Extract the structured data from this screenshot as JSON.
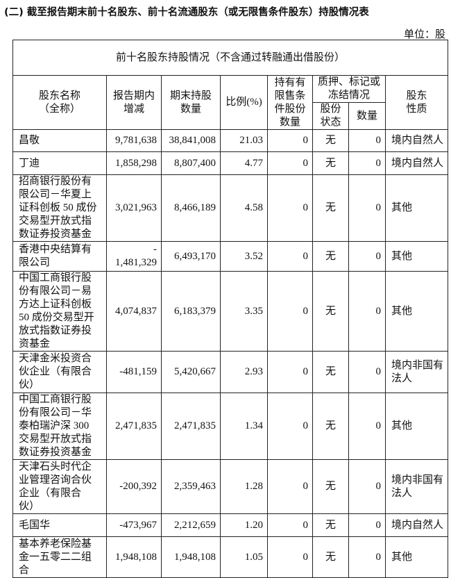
{
  "title": "(二) 截至报告期末前十名股东、前十名流通股东（或无限售条件股东）持股情况表",
  "unit": "单位：股",
  "table": {
    "caption": "前十名股东持股情况（不含通过转融通出借股份）",
    "headers": {
      "name": "股东名称\n（全称）",
      "change": "报告期内\n增减",
      "held": "期末持股\n数量",
      "ratio": "比例(%)",
      "restricted": "持有有\n限售条\n件股份\n数量",
      "pledge": "质押、标记或\n冻结情况",
      "pledge_status": "股份\n状态",
      "pledge_qty": "数量",
      "nature": "股东\n性质"
    },
    "rows": [
      {
        "name": "昌敬",
        "change": "9,781,638",
        "held": "38,841,008",
        "ratio": "21.03",
        "restricted": "0",
        "status": "无",
        "qty": "0",
        "nature": "境内自然人"
      },
      {
        "name": "丁迪",
        "change": "1,858,298",
        "held": "8,807,400",
        "ratio": "4.77",
        "restricted": "0",
        "status": "无",
        "qty": "0",
        "nature": "境内自然人"
      },
      {
        "name": "招商银行股份有\n限公司－华夏上\n证科创板 50 成份\n交易型开放式指\n数证券投资基金",
        "change": "3,021,963",
        "held": "8,466,189",
        "ratio": "4.58",
        "restricted": "0",
        "status": "无",
        "qty": "0",
        "nature": "其他"
      },
      {
        "name": "香港中央结算有\n限公司",
        "change": "-\n1,481,329",
        "held": "6,493,170",
        "ratio": "3.52",
        "restricted": "0",
        "status": "无",
        "qty": "0",
        "nature": "其他"
      },
      {
        "name": "中国工商银行股\n份有限公司－易\n方达上证科创板\n50 成份交易型开\n放式指数证券投\n资基金",
        "change": "4,074,837",
        "held": "6,183,379",
        "ratio": "3.35",
        "restricted": "0",
        "status": "无",
        "qty": "0",
        "nature": "其他"
      },
      {
        "name": "天津金米投资合\n伙企业（有限合\n伙）",
        "change": "-481,159",
        "held": "5,420,667",
        "ratio": "2.93",
        "restricted": "0",
        "status": "无",
        "qty": "0",
        "nature": "境内非国有\n法人"
      },
      {
        "name": "中国工商银行股\n份有限公司－华\n泰柏瑞沪深 300\n交易型开放式指\n数证券投资基金",
        "change": "2,471,835",
        "held": "2,471,835",
        "ratio": "1.34",
        "restricted": "0",
        "status": "无",
        "qty": "0",
        "nature": "其他"
      },
      {
        "name": "天津石头时代企\n业管理咨询合伙\n企业（有限合\n伙）",
        "change": "-200,392",
        "held": "2,359,463",
        "ratio": "1.28",
        "restricted": "0",
        "status": "无",
        "qty": "0",
        "nature": "境内非国有\n法人"
      },
      {
        "name": "毛国华",
        "change": "-473,967",
        "held": "2,212,659",
        "ratio": "1.20",
        "restricted": "0",
        "status": "无",
        "qty": "0",
        "nature": "境内自然人"
      },
      {
        "name": "基本养老保险基\n金一五零二二组\n合",
        "change": "1,948,108",
        "held": "1,948,108",
        "ratio": "1.05",
        "restricted": "0",
        "status": "无",
        "qty": "0",
        "nature": "其他"
      }
    ]
  }
}
